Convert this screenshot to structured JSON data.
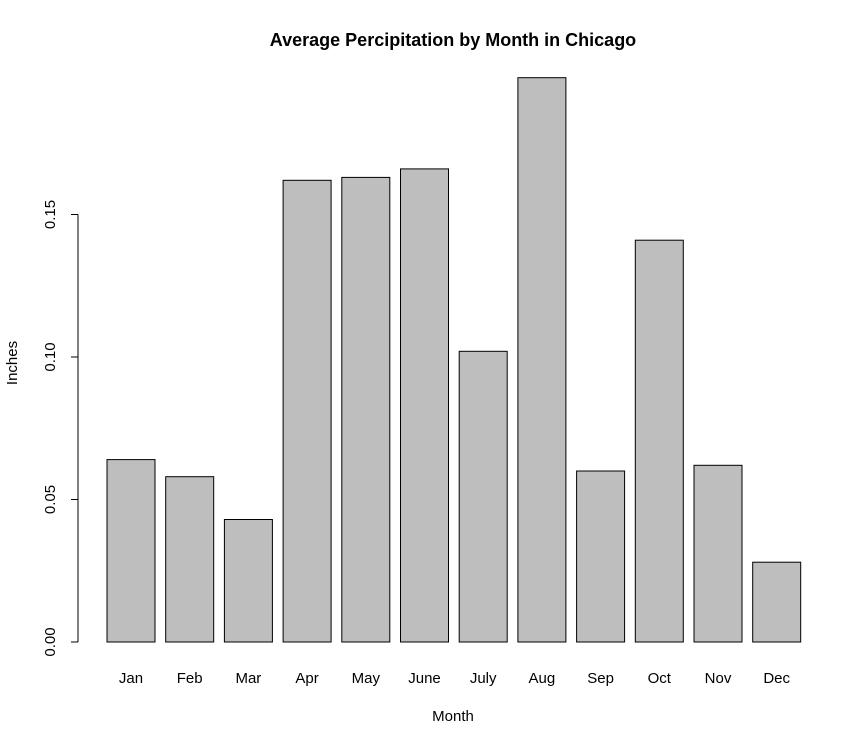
{
  "chart_data": {
    "type": "bar",
    "title": "Average Percipitation by Month in Chicago",
    "xlabel": "Month",
    "ylabel": "Inches",
    "categories": [
      "Jan",
      "Feb",
      "Mar",
      "Apr",
      "May",
      "June",
      "July",
      "Aug",
      "Sep",
      "Oct",
      "Nov",
      "Dec"
    ],
    "values": [
      0.064,
      0.058,
      0.043,
      0.162,
      0.163,
      0.166,
      0.102,
      0.198,
      0.06,
      0.141,
      0.062,
      0.028
    ],
    "ylim": [
      0,
      0.2
    ],
    "yticks": [
      "0.00",
      "0.05",
      "0.10",
      "0.15"
    ],
    "bar_color": "#bebebe",
    "bar_border_color": "#000000",
    "grid": false,
    "legend": "none"
  }
}
